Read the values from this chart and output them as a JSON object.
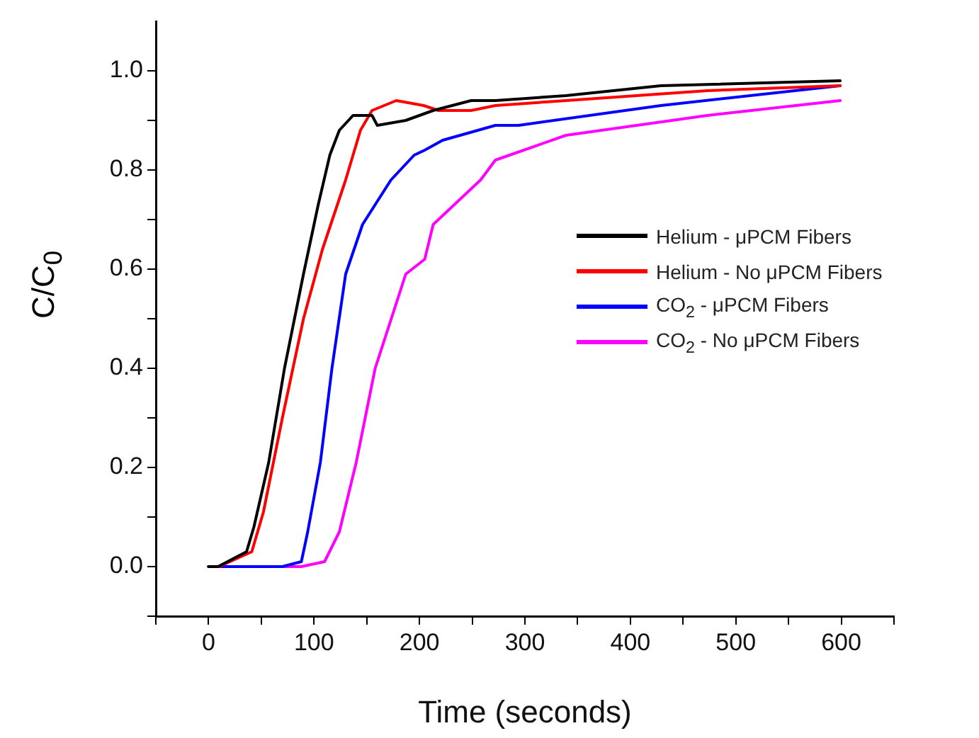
{
  "chart_data": {
    "type": "line",
    "xlabel": "Time (seconds)",
    "ylabel": "C/C$_{0}$",
    "xlim": [
      -50,
      650
    ],
    "xticks": [
      {
        "value": -50,
        "label": null
      },
      0,
      {
        "value": 50,
        "label": null
      },
      100,
      {
        "value": 150,
        "label": null
      },
      200,
      {
        "value": 250,
        "label": null
      },
      300,
      {
        "value": 350,
        "label": null
      },
      400,
      {
        "value": 450,
        "label": null
      },
      500,
      {
        "value": 550,
        "label": null
      },
      600,
      {
        "value": 650,
        "label": null
      }
    ],
    "ylim": [
      -0.1,
      1.1
    ],
    "yticks": [
      {
        "value": -0.1,
        "label": null
      },
      {
        "value": 0,
        "label": "0.0"
      },
      {
        "value": 0.1,
        "label": null
      },
      {
        "value": 0.2,
        "label": "0.2"
      },
      {
        "value": 0.3,
        "label": null
      },
      {
        "value": 0.4,
        "label": "0.4"
      },
      {
        "value": 0.5,
        "label": null
      },
      {
        "value": 0.6,
        "label": "0.6"
      },
      {
        "value": 0.7,
        "label": null
      },
      {
        "value": 0.8,
        "label": "0.8"
      },
      {
        "value": 0.9,
        "label": null
      },
      {
        "value": 1.0,
        "label": "1.0"
      }
    ],
    "grid": false,
    "legend": "right",
    "marker": "none",
    "line_style": "solid",
    "series": [
      {
        "name": "Helium - μPCM Fibers",
        "color": "#000000",
        "x": [
          0,
          9,
          36,
          43,
          57,
          72,
          90,
          104,
          115,
          124,
          137,
          155,
          160,
          187,
          213,
          249,
          272,
          339,
          429,
          599
        ],
        "values": [
          0,
          0,
          0.03,
          0.08,
          0.21,
          0.4,
          0.59,
          0.73,
          0.83,
          0.88,
          0.91,
          0.91,
          0.89,
          0.9,
          0.92,
          0.94,
          0.94,
          0.95,
          0.97,
          0.98
        ]
      },
      {
        "name": "Helium - No μPCM Fibers",
        "color": "#ff0000",
        "x": [
          0,
          10,
          41,
          52,
          70,
          90,
          108,
          130,
          144,
          155,
          178,
          204,
          218,
          249,
          272,
          339,
          473,
          599
        ],
        "values": [
          0,
          0,
          0.03,
          0.11,
          0.3,
          0.5,
          0.64,
          0.78,
          0.88,
          0.92,
          0.94,
          0.93,
          0.92,
          0.92,
          0.93,
          0.94,
          0.96,
          0.97
        ]
      },
      {
        "name": "CO$_{2}$ - μPCM Fibers",
        "color": "#0000ff",
        "x": [
          0,
          70,
          88,
          94,
          106,
          117,
          130,
          146,
          173,
          195,
          205,
          222,
          272,
          294,
          429,
          599
        ],
        "values": [
          0,
          0,
          0.01,
          0.07,
          0.21,
          0.4,
          0.59,
          0.69,
          0.78,
          0.83,
          0.84,
          0.86,
          0.89,
          0.89,
          0.93,
          0.97
        ]
      },
      {
        "name": "CO$_{2}$ - No μPCM Fibers",
        "color": "#ff00ff",
        "x": [
          0,
          88,
          110,
          124,
          140,
          158,
          187,
          205,
          213,
          258,
          272,
          339,
          473,
          599
        ],
        "values": [
          0,
          0,
          0.01,
          0.07,
          0.21,
          0.4,
          0.59,
          0.62,
          0.69,
          0.78,
          0.82,
          0.87,
          0.91,
          0.94
        ]
      }
    ]
  }
}
